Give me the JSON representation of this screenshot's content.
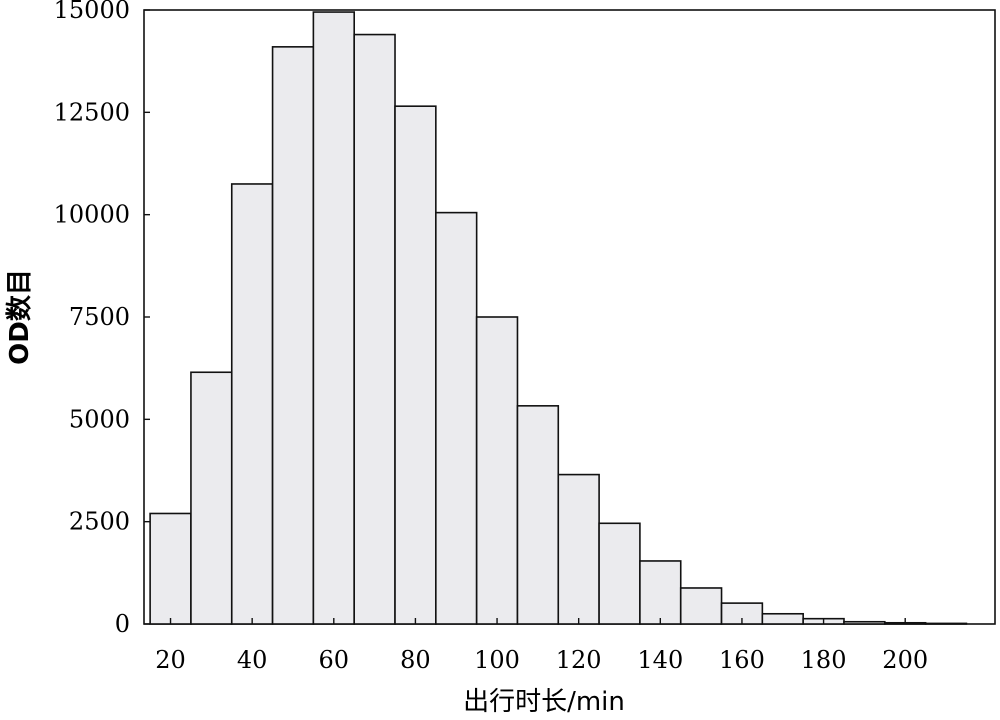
{
  "chart_data": {
    "type": "bar",
    "title": "",
    "xlabel": "出行时长/min",
    "ylabel": "OD数目",
    "xlim": [
      13.5,
      222
    ],
    "ylim": [
      0,
      15000
    ],
    "xticks": [
      "20",
      "40",
      "60",
      "80",
      "100",
      "120",
      "140",
      "160",
      "180",
      "200"
    ],
    "xtick_values": [
      20,
      40,
      60,
      80,
      100,
      120,
      140,
      160,
      180,
      200
    ],
    "yticks": [
      "0",
      "2500",
      "5000",
      "7500",
      "10000",
      "12500",
      "15000"
    ],
    "ytick_values": [
      0,
      2500,
      5000,
      7500,
      10000,
      12500,
      15000
    ],
    "bin_width": 10,
    "bin_starts": [
      15,
      25,
      35,
      45,
      55,
      65,
      75,
      85,
      95,
      105,
      115,
      125,
      135,
      145,
      155,
      165,
      175,
      185,
      195,
      205
    ],
    "values": [
      2700,
      6150,
      10750,
      14100,
      14950,
      14400,
      12650,
      10050,
      7500,
      5330,
      3650,
      2460,
      1540,
      880,
      510,
      250,
      130,
      55,
      30,
      15
    ],
    "grid": false,
    "legend": "none"
  }
}
